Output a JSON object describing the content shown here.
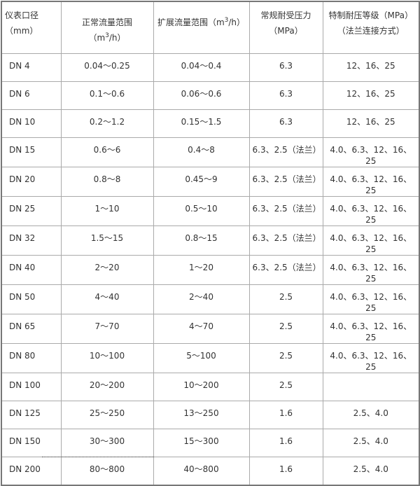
{
  "table": {
    "headers": [
      {
        "text": "仪表口径（mm）"
      },
      {
        "pre": "正常流量范围（m",
        "sup": "3",
        "post": "/h）"
      },
      {
        "pre": "扩展流量范围（m",
        "sup": "3",
        "post": "/h）"
      },
      {
        "text": "常规耐受压力（MPa）"
      },
      {
        "text": "特制耐压等级（MPa）（法兰连接方式）"
      }
    ],
    "rows": [
      [
        "DN 4",
        "0.04～0.25",
        "0.04～0.4",
        "6.3",
        "12、16、25"
      ],
      [
        "DN 6",
        "0.1～0.6",
        "0.06～0.6",
        "6.3",
        "12、16、25"
      ],
      [
        "DN 10",
        "0.2～1.2",
        "0.15～1.5",
        "6.3",
        "12、16、25"
      ],
      [
        "DN 15",
        "0.6～6",
        "0.4～8",
        "6.3、2.5（法兰）",
        "4.0、6.3、12、16、25"
      ],
      [
        "DN 20",
        "0.8～8",
        "0.45～9",
        "6.3、2.5（法兰）",
        "4.0、6.3、12、16、25"
      ],
      [
        "DN 25",
        "1～10",
        "0.5～10",
        "6.3、2.5（法兰）",
        "4.0、6.3、12、16、25"
      ],
      [
        "DN 32",
        "1.5～15",
        "0.8～15",
        "6.3、2.5（法兰）",
        "4.0、6.3、12、16、25"
      ],
      [
        "DN 40",
        "2～20",
        "1～20",
        "6.3、2.5（法兰）",
        "4.0、6.3、12、16、25"
      ],
      [
        "DN 50",
        "4～40",
        "2～40",
        "2.5",
        "4.0、6.3、12、16、25"
      ],
      [
        "DN 65",
        "7～70",
        "4～70",
        "2.5",
        "4.0、6.3、12、16、25"
      ],
      [
        "DN 80",
        "10～100",
        "5～100",
        "2.5",
        "4.0、6.3、12、16、25"
      ],
      [
        "DN 100",
        "20～200",
        "10～200",
        "2.5",
        ""
      ],
      [
        "DN 125",
        "25～250",
        "13～250",
        "1.6",
        "2.5、4.0"
      ],
      [
        "DN 150",
        "30～300",
        "15～300",
        "1.6",
        "2.5、4.0"
      ],
      [
        "DN 200",
        "80～800",
        "40～800",
        "1.6",
        "2.5、4.0"
      ]
    ]
  }
}
